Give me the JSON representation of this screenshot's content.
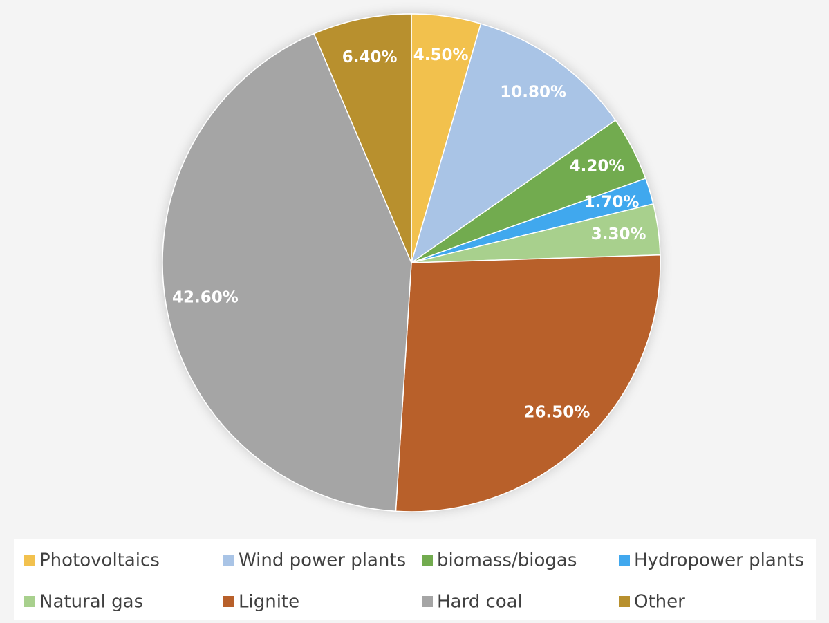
{
  "chart_data": {
    "type": "pie",
    "categories": [
      "Photovoltaics",
      "Wind power plants",
      "biomass/biogas",
      "Hydropower plants",
      "Natural gas",
      "Lignite",
      "Hard coal",
      "Other"
    ],
    "values": [
      4.5,
      10.8,
      4.2,
      1.7,
      3.3,
      26.5,
      42.6,
      6.4
    ],
    "value_labels": [
      "4.50%",
      "10.80%",
      "4.20%",
      "1.70%",
      "3.30%",
      "26.50%",
      "42.60%",
      "6.40%"
    ],
    "colors": [
      "#f2c14e",
      "#a9c4e6",
      "#72ab4f",
      "#41a8ee",
      "#a8d08d",
      "#b8602a",
      "#a5a5a5",
      "#b8902e"
    ],
    "legend": "bottom"
  }
}
